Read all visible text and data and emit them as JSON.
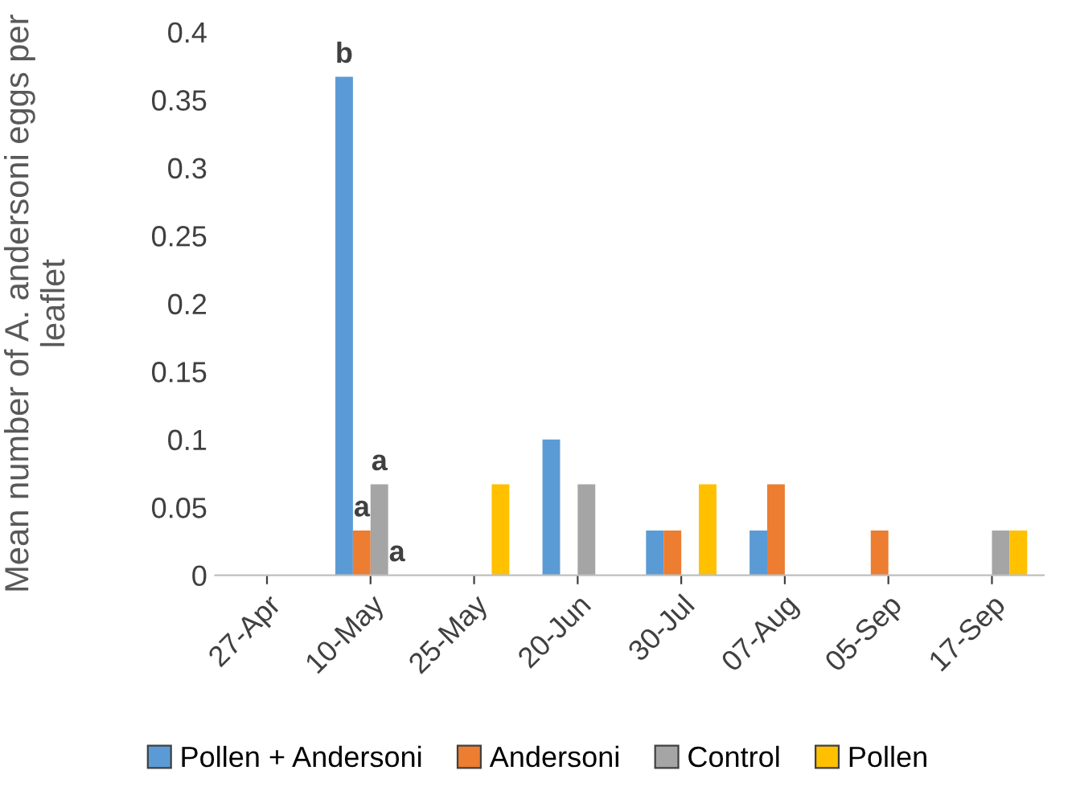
{
  "chart_data": {
    "type": "bar",
    "ylabel": "Mean number of A. andersoni eggs per leaflet",
    "categories": [
      "27-Apr",
      "10-May",
      "25-May",
      "20-Jun",
      "30-Jul",
      "07-Aug",
      "05-Sep",
      "17-Sep"
    ],
    "series": [
      {
        "name": "Pollen + Andersoni",
        "color": "#5b9bd5",
        "values": [
          0,
          0.367,
          0,
          0.1,
          0.033,
          0.033,
          0,
          0
        ]
      },
      {
        "name": "Andersoni",
        "color": "#ed7d31",
        "values": [
          0,
          0.033,
          0,
          0,
          0.033,
          0.067,
          0.033,
          0
        ]
      },
      {
        "name": "Control",
        "color": "#a5a5a5",
        "values": [
          0,
          0.067,
          0,
          0.067,
          0,
          0,
          0,
          0.033
        ]
      },
      {
        "name": "Pollen",
        "color": "#ffc000",
        "values": [
          0,
          0,
          0.067,
          0,
          0.067,
          0,
          0,
          0.033
        ]
      }
    ],
    "annotations": [
      "b",
      "a",
      "a",
      "a"
    ],
    "ylim": [
      0,
      0.4
    ],
    "yticks": [
      0,
      0.05,
      0.1,
      0.15,
      0.2,
      0.25,
      0.3,
      0.35,
      0.4
    ],
    "grid": false,
    "legend": "bottom"
  }
}
